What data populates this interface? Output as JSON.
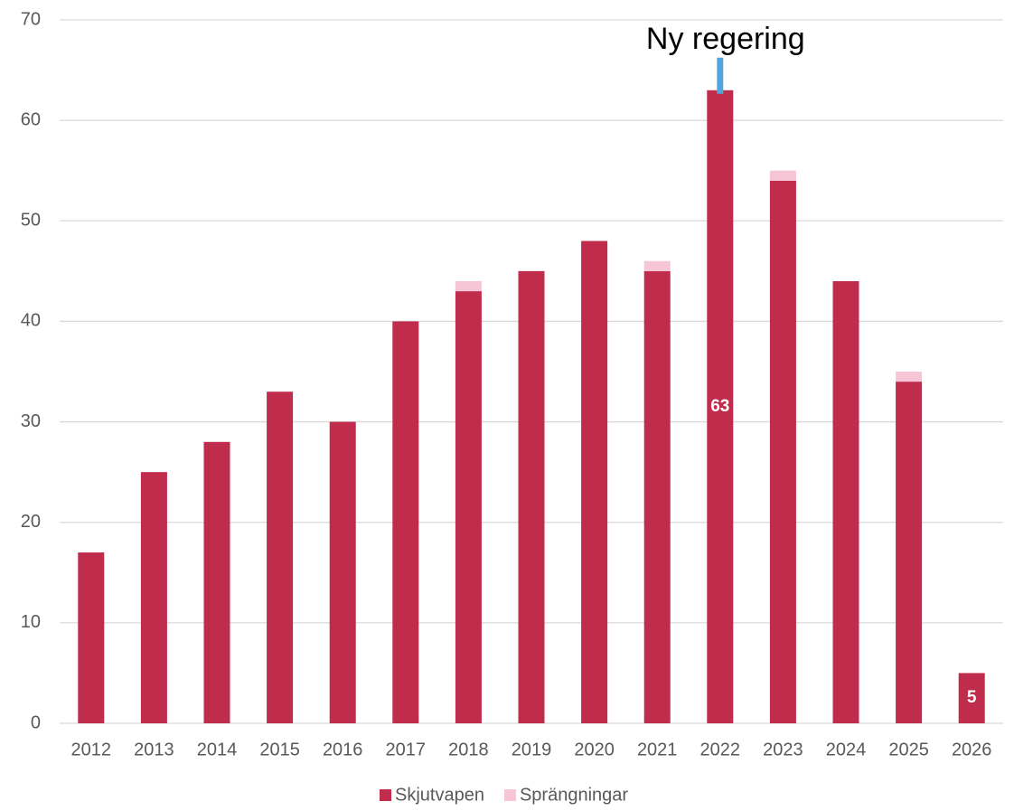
{
  "chart_data": {
    "type": "stacked_bar",
    "categories": [
      "2012",
      "2013",
      "2014",
      "2015",
      "2016",
      "2017",
      "2018",
      "2019",
      "2020",
      "2021",
      "2022",
      "2023",
      "2024",
      "2025",
      "2026"
    ],
    "series": [
      {
        "name": "Skjutvapen",
        "color": "#bf2c4c",
        "values": [
          17,
          25,
          28,
          33,
          30,
          40,
          43,
          45,
          48,
          45,
          63,
          54,
          44,
          34,
          5
        ],
        "value_labels": [
          null,
          null,
          null,
          null,
          null,
          null,
          null,
          null,
          null,
          null,
          "63",
          null,
          null,
          null,
          "5"
        ]
      },
      {
        "name": "Sprängningar",
        "color": "#f6c6d6",
        "values": [
          0,
          0,
          0,
          0,
          0,
          0,
          1,
          0,
          0,
          1,
          0,
          1,
          0,
          1,
          0
        ]
      }
    ],
    "ylim": [
      0,
      70
    ],
    "yticks": [
      0,
      10,
      20,
      30,
      40,
      50,
      60,
      70
    ],
    "grid": true,
    "legend": "bottom",
    "annotation": {
      "text": "Ny regering",
      "category": "2022",
      "color": "#4ea6dc"
    }
  }
}
